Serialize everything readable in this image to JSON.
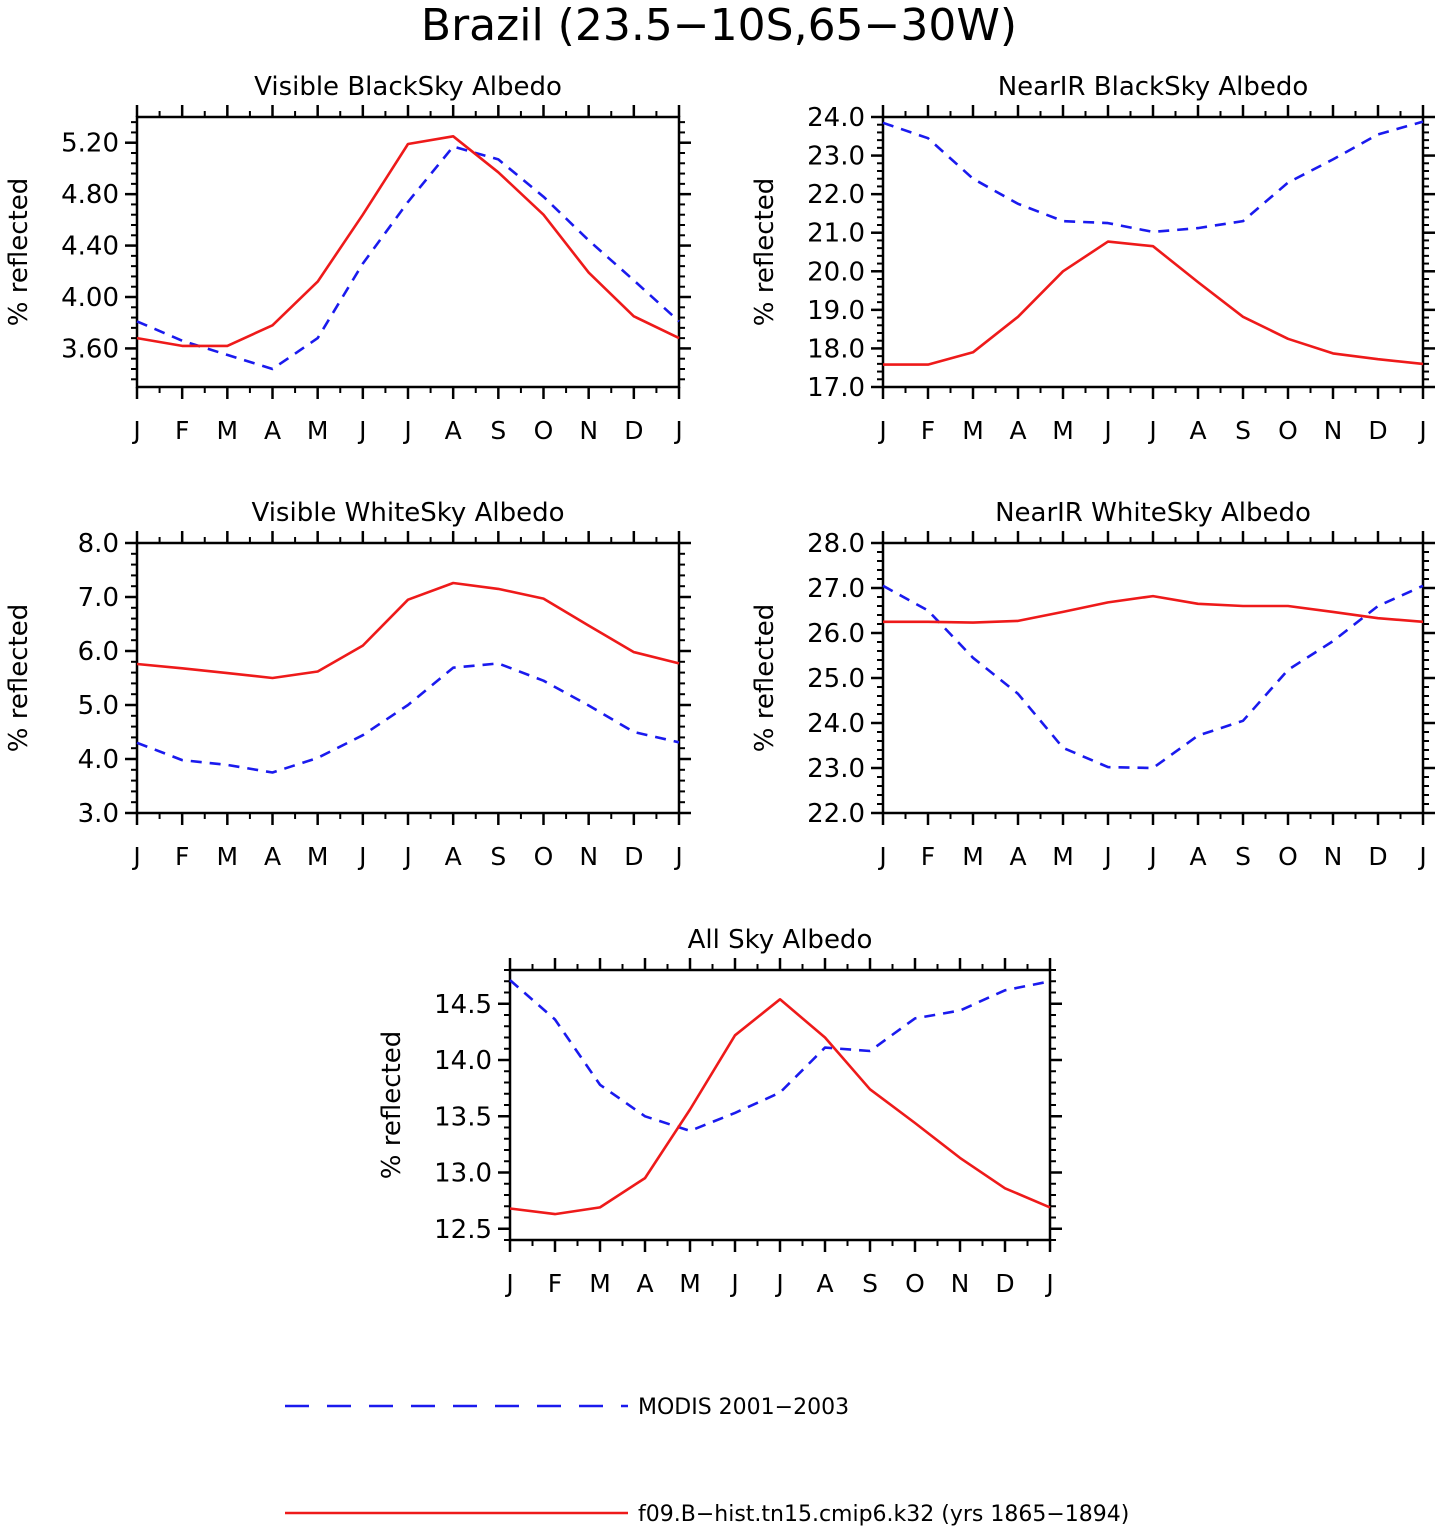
{
  "figure": {
    "title": "Brazil (23.5−10S,65−30W)"
  },
  "legend": [
    {
      "label": "MODIS 2001−2003",
      "color": "#1a1aee",
      "style": "dashed"
    },
    {
      "label": "f09.B−hist.tn15.cmip6.k32 (yrs 1865−1894)",
      "color": "#ee1a1a",
      "style": "solid"
    }
  ],
  "chart_data": [
    {
      "type": "line",
      "title": "Visible BlackSky Albedo",
      "ylabel": "% reflected",
      "xlabel": "",
      "categories": [
        "J",
        "F",
        "M",
        "A",
        "M",
        "J",
        "J",
        "A",
        "S",
        "O",
        "N",
        "D",
        "J"
      ],
      "ylim": [
        3.3,
        5.4
      ],
      "yticks": [
        "3.60",
        "4.00",
        "4.40",
        "4.80",
        "5.20"
      ],
      "yminor_step": 0.08,
      "series": [
        {
          "name": "MODIS 2001−2003",
          "style": "dashed",
          "color": "#1a1aee",
          "values": [
            3.81,
            3.66,
            3.55,
            3.44,
            3.68,
            4.26,
            4.74,
            5.17,
            5.07,
            4.78,
            4.44,
            4.13,
            3.81
          ]
        },
        {
          "name": "f09.B−hist.tn15.cmip6.k32 (yrs 1865−1894)",
          "style": "solid",
          "color": "#ee1a1a",
          "values": [
            3.68,
            3.62,
            3.62,
            3.78,
            4.12,
            4.64,
            5.19,
            5.25,
            4.97,
            4.64,
            4.19,
            3.85,
            3.68
          ]
        }
      ]
    },
    {
      "type": "line",
      "title": "NearIR BlackSky Albedo",
      "ylabel": "% reflected",
      "xlabel": "",
      "categories": [
        "J",
        "F",
        "M",
        "A",
        "M",
        "J",
        "J",
        "A",
        "S",
        "O",
        "N",
        "D",
        "J"
      ],
      "ylim": [
        17.0,
        24.0
      ],
      "yticks": [
        "17.0",
        "18.0",
        "19.0",
        "20.0",
        "21.0",
        "22.0",
        "23.0",
        "24.0"
      ],
      "yminor_step": 0.2,
      "series": [
        {
          "name": "MODIS 2001−2003",
          "style": "dashed",
          "color": "#1a1aee",
          "values": [
            23.85,
            23.45,
            22.4,
            21.75,
            21.3,
            21.25,
            21.02,
            21.12,
            21.3,
            22.3,
            22.9,
            23.55,
            23.88
          ]
        },
        {
          "name": "f09.B−hist.tn15.cmip6.k32 (yrs 1865−1894)",
          "style": "solid",
          "color": "#ee1a1a",
          "values": [
            17.58,
            17.58,
            17.9,
            18.82,
            20.0,
            20.77,
            20.65,
            19.72,
            18.82,
            18.25,
            17.87,
            17.72,
            17.6
          ]
        }
      ]
    },
    {
      "type": "line",
      "title": "Visible WhiteSky Albedo",
      "ylabel": "% reflected",
      "xlabel": "",
      "categories": [
        "J",
        "F",
        "M",
        "A",
        "M",
        "J",
        "J",
        "A",
        "S",
        "O",
        "N",
        "D",
        "J"
      ],
      "ylim": [
        3.0,
        8.0
      ],
      "yticks": [
        "3.0",
        "4.0",
        "5.0",
        "6.0",
        "7.0",
        "8.0"
      ],
      "yminor_step": 0.2,
      "series": [
        {
          "name": "MODIS 2001−2003",
          "style": "dashed",
          "color": "#1a1aee",
          "values": [
            4.3,
            3.98,
            3.89,
            3.75,
            4.02,
            4.44,
            5.0,
            5.69,
            5.77,
            5.45,
            4.99,
            4.5,
            4.31
          ]
        },
        {
          "name": "f09.B−hist.tn15.cmip6.k32 (yrs 1865−1894)",
          "style": "solid",
          "color": "#ee1a1a",
          "values": [
            5.76,
            5.68,
            5.59,
            5.5,
            5.62,
            6.1,
            6.95,
            7.26,
            7.15,
            6.97,
            6.47,
            5.98,
            5.77
          ]
        }
      ]
    },
    {
      "type": "line",
      "title": "NearIR WhiteSky Albedo",
      "ylabel": "% reflected",
      "xlabel": "",
      "categories": [
        "J",
        "F",
        "M",
        "A",
        "M",
        "J",
        "J",
        "A",
        "S",
        "O",
        "N",
        "D",
        "J"
      ],
      "ylim": [
        22.0,
        28.0
      ],
      "yticks": [
        "22.0",
        "23.0",
        "24.0",
        "25.0",
        "26.0",
        "27.0",
        "28.0"
      ],
      "yminor_step": 0.2,
      "series": [
        {
          "name": "MODIS 2001−2003",
          "style": "dashed",
          "color": "#1a1aee",
          "values": [
            27.05,
            26.5,
            25.45,
            24.65,
            23.45,
            23.02,
            23.0,
            23.72,
            24.05,
            25.18,
            25.82,
            26.6,
            27.05
          ]
        },
        {
          "name": "f09.B−hist.tn15.cmip6.k32 (yrs 1865−1894)",
          "style": "solid",
          "color": "#ee1a1a",
          "values": [
            26.25,
            26.25,
            26.23,
            26.27,
            26.47,
            26.68,
            26.82,
            26.65,
            26.6,
            26.6,
            26.47,
            26.33,
            26.25
          ]
        }
      ]
    },
    {
      "type": "line",
      "title": "All Sky Albedo",
      "ylabel": "% reflected",
      "xlabel": "",
      "categories": [
        "J",
        "F",
        "M",
        "A",
        "M",
        "J",
        "J",
        "A",
        "S",
        "O",
        "N",
        "D",
        "J"
      ],
      "ylim": [
        12.4,
        14.8
      ],
      "yticks": [
        "12.5",
        "13.0",
        "13.5",
        "14.0",
        "14.5"
      ],
      "yminor_step": 0.1,
      "series": [
        {
          "name": "MODIS 2001−2003",
          "style": "dashed",
          "color": "#1a1aee",
          "values": [
            14.71,
            14.36,
            13.78,
            13.5,
            13.37,
            13.53,
            13.71,
            14.11,
            14.08,
            14.37,
            14.44,
            14.62,
            14.7
          ]
        },
        {
          "name": "f09.B−hist.tn15.cmip6.k32 (yrs 1865−1894)",
          "style": "solid",
          "color": "#ee1a1a",
          "values": [
            12.68,
            12.63,
            12.69,
            12.95,
            13.56,
            14.22,
            14.54,
            14.2,
            13.74,
            13.44,
            13.13,
            12.86,
            12.69
          ]
        }
      ]
    }
  ]
}
